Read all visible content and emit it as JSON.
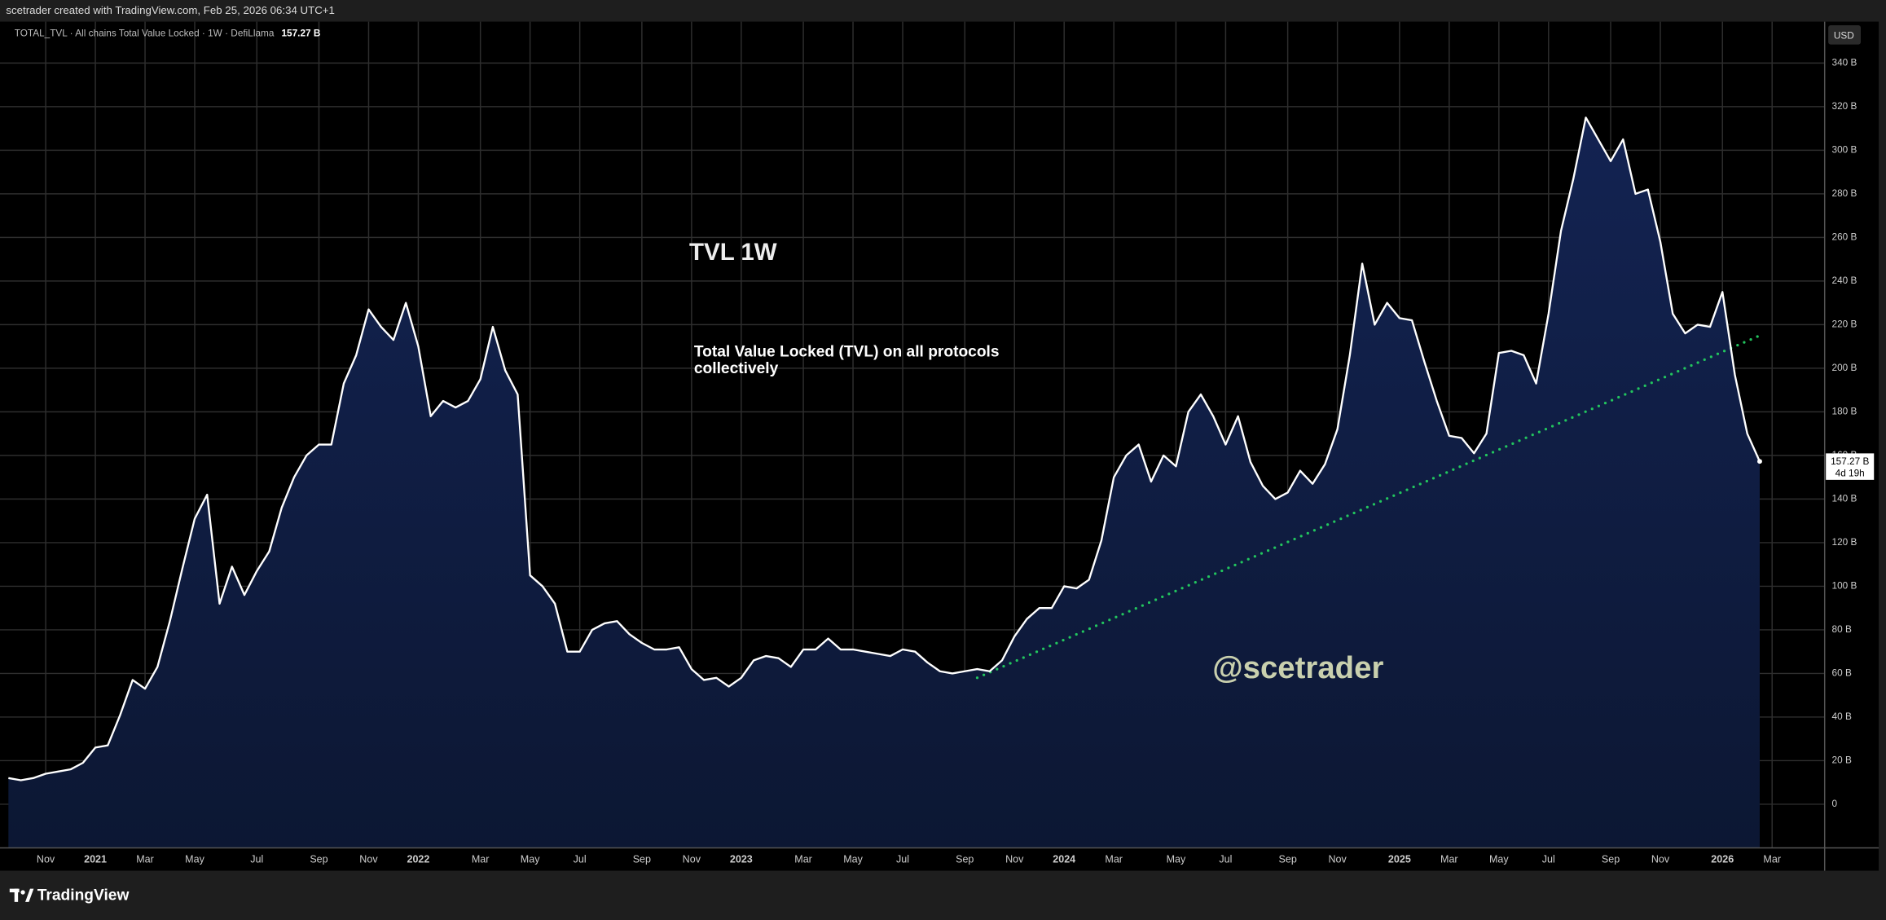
{
  "header": {
    "caption": "scetrader created with TradingView.com, Feb 25, 2026 06:34 UTC+1",
    "brand": "TradingView"
  },
  "chart_data": {
    "type": "area",
    "title": "TVL 1W",
    "subtitle_lines": [
      "Total Value Locked (TVL) on all protocols",
      "collectively"
    ],
    "watermark": "@scetrader",
    "symbol_label": "TOTAL_TVL · All chains Total Value Locked · 1W · DefiLlama",
    "last_value_label": "157.27 B",
    "countdown": "4d 19h",
    "currency": "USD",
    "line_color": "#ffffff",
    "fill_color": "#0f1c3f",
    "grid": true,
    "categories": [
      null,
      null,
      null,
      "Nov",
      null,
      null,
      null,
      "2021",
      null,
      null,
      null,
      "Mar",
      null,
      null,
      null,
      "May",
      null,
      null,
      null,
      null,
      "Jul",
      null,
      null,
      null,
      null,
      "Sep",
      null,
      null,
      null,
      "Nov",
      null,
      null,
      null,
      "2022",
      null,
      null,
      null,
      null,
      "Mar",
      null,
      null,
      null,
      "May",
      null,
      null,
      null,
      "Jul",
      null,
      null,
      null,
      null,
      "Sep",
      null,
      null,
      null,
      "Nov",
      null,
      null,
      null,
      "2023",
      null,
      null,
      null,
      null,
      "Mar",
      null,
      null,
      null,
      "May",
      null,
      null,
      null,
      "Jul",
      null,
      null,
      null,
      null,
      "Sep",
      null,
      null,
      null,
      "Nov",
      null,
      null,
      null,
      "2024",
      null,
      null,
      null,
      "Mar",
      null,
      null,
      null,
      null,
      "May",
      null,
      null,
      null,
      "Jul",
      null,
      null,
      null,
      null,
      "Sep",
      null,
      null,
      null,
      "Nov",
      null,
      null,
      null,
      null,
      "2025",
      null,
      null,
      null,
      "Mar",
      null,
      null,
      null,
      "May",
      null,
      null,
      null,
      "Jul",
      null,
      null,
      null,
      null,
      "Sep",
      null,
      null,
      null,
      "Nov",
      null,
      null,
      null,
      null,
      "2026",
      null,
      null,
      null,
      "Mar"
    ],
    "values": [
      12,
      11,
      12,
      14,
      15,
      16,
      19,
      26,
      27,
      41,
      57,
      53,
      63,
      84,
      108,
      131,
      142,
      92,
      109,
      96,
      107,
      116,
      136,
      150,
      160,
      165,
      165,
      193,
      206,
      227,
      219,
      213,
      230,
      210,
      178,
      185,
      182,
      185,
      195,
      219,
      199,
      188,
      105,
      100,
      92,
      70,
      70,
      80,
      83,
      84,
      78,
      74,
      71,
      71,
      72,
      62,
      57,
      58,
      54,
      58,
      66,
      68,
      67,
      63,
      71,
      71,
      76,
      71,
      71,
      70,
      69,
      68,
      71,
      70,
      65,
      61,
      60,
      61,
      62,
      61,
      66,
      77,
      85,
      90,
      90,
      100,
      99,
      103,
      121,
      150,
      160,
      165,
      148,
      160,
      155,
      180,
      188,
      178,
      165,
      178,
      157,
      146,
      140,
      143,
      153,
      147,
      156,
      172,
      206,
      248,
      220,
      230,
      223,
      222,
      203,
      185,
      169,
      168,
      161,
      170,
      207,
      208,
      206,
      193,
      225,
      263,
      287,
      315,
      305,
      295,
      305,
      280,
      282,
      258,
      225,
      216,
      220,
      219,
      235,
      197,
      170,
      157.27,
      null
    ],
    "trendline": {
      "color": "#22c55e",
      "start": {
        "index": 78,
        "value": 58
      },
      "end": {
        "index": 141,
        "value": 215
      }
    },
    "ylim": [
      -20,
      359
    ],
    "yticks": [
      0,
      {
        "value": 20,
        "label": "20 B"
      },
      {
        "value": 40,
        "label": "40 B"
      },
      {
        "value": 60,
        "label": "60 B"
      },
      {
        "value": 80,
        "label": "80 B"
      },
      {
        "value": 100,
        "label": "100 B"
      },
      {
        "value": 120,
        "label": "120 B"
      },
      {
        "value": 140,
        "label": "140 B"
      },
      {
        "value": 160,
        "label": "160 B"
      },
      {
        "value": 180,
        "label": "180 B"
      },
      {
        "value": 200,
        "label": "200 B"
      },
      {
        "value": 220,
        "label": "220 B"
      },
      {
        "value": 240,
        "label": "240 B"
      },
      {
        "value": 260,
        "label": "260 B"
      },
      {
        "value": 280,
        "label": "280 B"
      },
      {
        "value": 300,
        "label": "300 B"
      },
      {
        "value": 320,
        "label": "320 B"
      },
      {
        "value": 340,
        "label": "340 B"
      }
    ]
  }
}
